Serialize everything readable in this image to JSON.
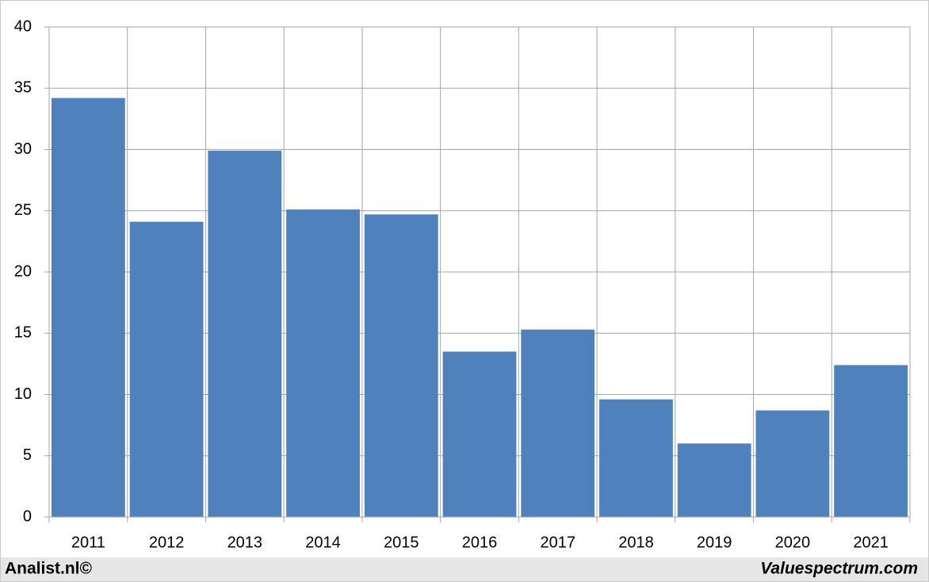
{
  "chart_data": {
    "type": "bar",
    "categories": [
      "2011",
      "2012",
      "2013",
      "2014",
      "2015",
      "2016",
      "2017",
      "2018",
      "2019",
      "2020",
      "2021"
    ],
    "values": [
      34.2,
      24.1,
      29.9,
      25.1,
      24.7,
      13.5,
      15.3,
      9.6,
      6.0,
      8.7,
      12.4
    ],
    "color": "#4f81bd",
    "ylim": [
      0,
      40
    ],
    "yticks": [
      0,
      5,
      10,
      15,
      20,
      25,
      30,
      35,
      40
    ],
    "grid": true
  },
  "footer": {
    "left": "Analist.nl©",
    "right": "Valuespectrum.com"
  }
}
